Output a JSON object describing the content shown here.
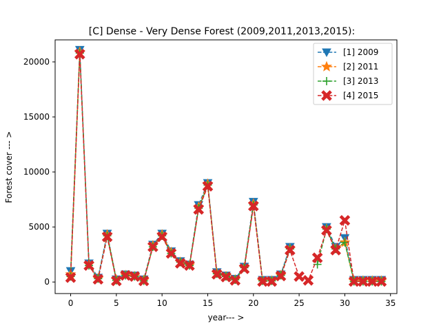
{
  "chart_data": {
    "type": "line",
    "title": "[C] Dense  - Very Dense Forest (2009,2011,2013,2015):",
    "xlabel": "year--- >",
    "ylabel": "Forest cover --- >",
    "xlim": [
      -1.7,
      35.7
    ],
    "ylim": [
      -1050,
      22000
    ],
    "xticks": [
      0,
      5,
      10,
      15,
      20,
      25,
      30,
      35
    ],
    "yticks": [
      0,
      5000,
      10000,
      15000,
      20000
    ],
    "grid": false,
    "legend_position": "top-right",
    "x": [
      0,
      1,
      2,
      3,
      4,
      5,
      6,
      7,
      8,
      9,
      10,
      11,
      12,
      13,
      14,
      15,
      16,
      17,
      18,
      19,
      20,
      21,
      22,
      23,
      24,
      25,
      26,
      27,
      28,
      29,
      30,
      31,
      32,
      33,
      34
    ],
    "series": [
      {
        "name": "[1] 2009",
        "color": "#1f77b4",
        "marker": "triangle-down",
        "values": [
          1000,
          21100,
          1700,
          400,
          4400,
          250,
          700,
          600,
          250,
          3400,
          4400,
          2800,
          1900,
          1600,
          7000,
          9000,
          900,
          600,
          300,
          1400,
          7300,
          200,
          200,
          700,
          3200,
          null,
          null,
          null,
          5000,
          3200,
          4000,
          200,
          200,
          200,
          200
        ]
      },
      {
        "name": "[2] 2011",
        "color": "#ff7f0e",
        "marker": "star",
        "values": [
          700,
          20900,
          1600,
          300,
          4300,
          200,
          600,
          500,
          150,
          3300,
          4300,
          2700,
          1800,
          1500,
          6800,
          8900,
          800,
          500,
          200,
          1300,
          7100,
          100,
          100,
          600,
          3000,
          null,
          null,
          null,
          4800,
          3000,
          3600,
          100,
          100,
          100,
          100
        ]
      },
      {
        "name": "[3] 2013",
        "color": "#2ca02c",
        "marker": "plus",
        "values": [
          500,
          20800,
          1500,
          300,
          4200,
          150,
          600,
          500,
          100,
          3200,
          4200,
          2600,
          1800,
          1500,
          6700,
          8800,
          750,
          500,
          200,
          1300,
          7000,
          100,
          100,
          600,
          3000,
          null,
          null,
          1600,
          4800,
          3000,
          3600,
          50,
          50,
          50,
          50
        ]
      },
      {
        "name": "[4] 2015",
        "color": "#d62728",
        "marker": "x",
        "values": [
          400,
          20700,
          1500,
          250,
          4100,
          100,
          600,
          500,
          100,
          3200,
          4100,
          2600,
          1700,
          1500,
          6600,
          8700,
          700,
          450,
          150,
          1200,
          6900,
          50,
          50,
          550,
          2900,
          500,
          150,
          2200,
          4700,
          2900,
          5600,
          50,
          50,
          50,
          50
        ]
      }
    ]
  }
}
